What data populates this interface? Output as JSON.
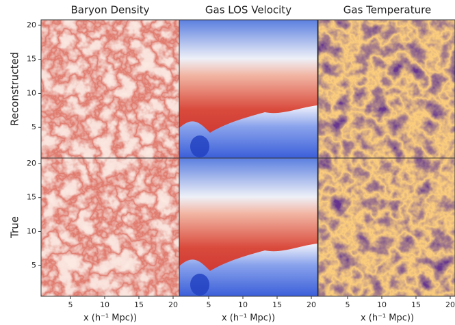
{
  "chart_data": {
    "type": "image_grid",
    "columns": [
      "Baryon Density",
      "Gas LOS Velocity",
      "Gas Temperature"
    ],
    "rows": [
      "Reconstructed",
      "True"
    ],
    "xlabel": "x (h⁻¹ Mpc))",
    "xlim": [
      0.7,
      20.9
    ],
    "ylim": [
      0.5,
      20.8
    ],
    "xticks": [
      5,
      10,
      15,
      20
    ],
    "yticks": [
      5,
      10,
      15,
      20
    ]
  }
}
